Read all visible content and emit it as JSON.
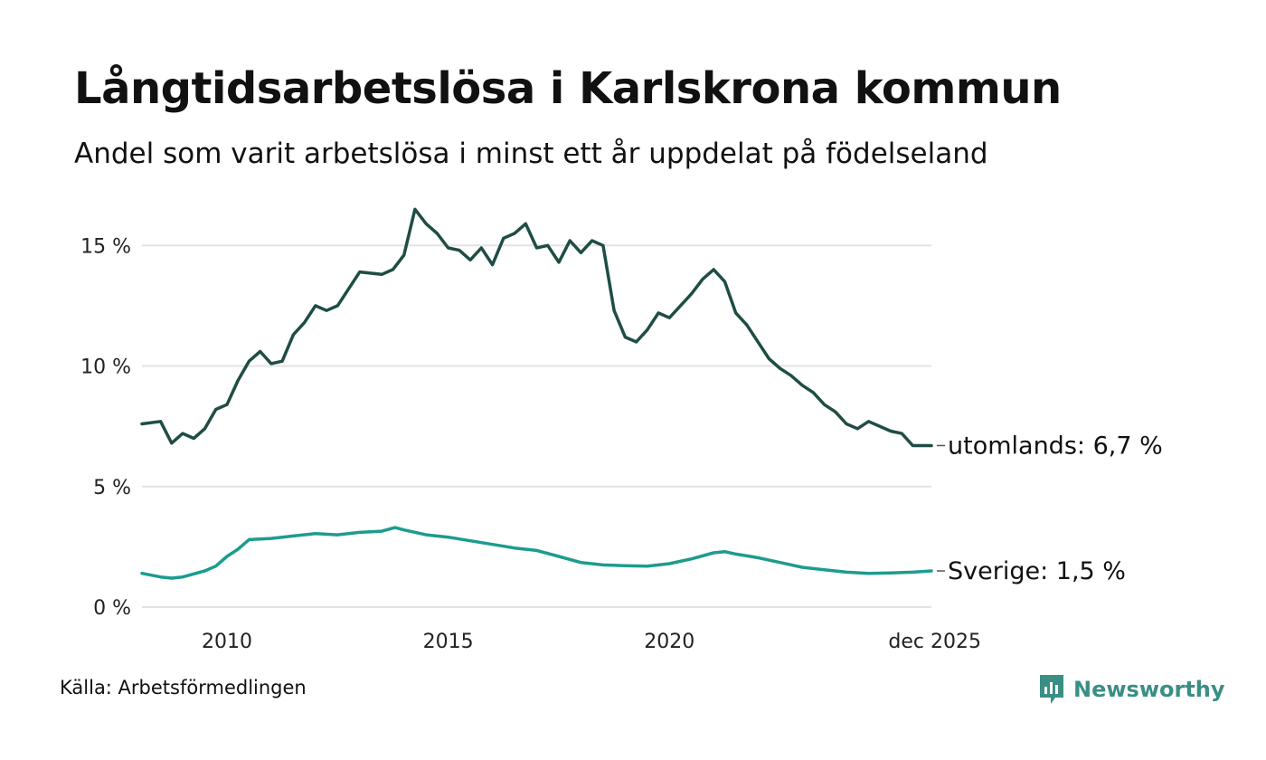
{
  "chart_data": {
    "type": "line",
    "title": "Långtidsarbetslösa i Karlskrona kommun",
    "subtitle": "Andel som varit arbetslösa i minst ett år uppdelat på födelseland",
    "xlabel": "",
    "ylabel": "",
    "ylim": [
      0,
      17
    ],
    "xlim": [
      2008.08,
      2025.92
    ],
    "yticks": [
      0,
      5,
      10,
      15
    ],
    "ytick_labels": [
      "0 %",
      "5 %",
      "10 %",
      "15 %"
    ],
    "xticks": [
      2010,
      2015,
      2020,
      2025.92
    ],
    "xtick_labels": [
      "2010",
      "2015",
      "2020",
      "dec 2025"
    ],
    "grid": true,
    "legend": "direct labels at right end of lines",
    "series": [
      {
        "name": "utomlands",
        "end_label": "utomlands: 6,7 %",
        "color": "#1f4d45",
        "x": [
          2008.08,
          2008.5,
          2008.75,
          2009.0,
          2009.25,
          2009.5,
          2009.75,
          2010.0,
          2010.25,
          2010.5,
          2010.75,
          2011.0,
          2011.25,
          2011.5,
          2011.75,
          2012.0,
          2012.25,
          2012.5,
          2012.75,
          2013.0,
          2013.5,
          2013.75,
          2014.0,
          2014.25,
          2014.5,
          2014.75,
          2015.0,
          2015.25,
          2015.5,
          2015.75,
          2016.0,
          2016.25,
          2016.5,
          2016.75,
          2017.0,
          2017.25,
          2017.5,
          2017.75,
          2018.0,
          2018.25,
          2018.5,
          2018.75,
          2019.0,
          2019.25,
          2019.5,
          2019.75,
          2020.0,
          2020.25,
          2020.5,
          2020.75,
          2021.0,
          2021.25,
          2021.5,
          2021.75,
          2022.0,
          2022.25,
          2022.5,
          2022.75,
          2023.0,
          2023.25,
          2023.5,
          2023.75,
          2024.0,
          2024.25,
          2024.5,
          2024.75,
          2025.0,
          2025.25,
          2025.5,
          2025.75,
          2025.92
        ],
        "values": [
          7.6,
          7.7,
          6.8,
          7.2,
          7.0,
          7.4,
          8.2,
          8.4,
          9.4,
          10.2,
          10.6,
          10.1,
          10.2,
          11.3,
          11.8,
          12.5,
          12.3,
          12.5,
          13.2,
          13.9,
          13.8,
          14.0,
          14.6,
          16.5,
          15.9,
          15.5,
          14.9,
          14.8,
          14.4,
          14.9,
          14.2,
          15.3,
          15.5,
          15.9,
          14.9,
          15.0,
          14.3,
          15.2,
          14.7,
          15.2,
          15.0,
          12.3,
          11.2,
          11.0,
          11.5,
          12.2,
          12.0,
          12.5,
          13.0,
          13.6,
          14.0,
          13.5,
          12.2,
          11.7,
          11.0,
          10.3,
          9.9,
          9.6,
          9.2,
          8.9,
          8.4,
          8.1,
          7.6,
          7.4,
          7.7,
          7.5,
          7.3,
          7.2,
          6.7,
          6.7,
          6.7
        ]
      },
      {
        "name": "Sverige",
        "end_label": "Sverige: 1,5 %",
        "color": "#1c9c8e",
        "x": [
          2008.08,
          2008.5,
          2008.75,
          2009.0,
          2009.5,
          2009.75,
          2010.0,
          2010.25,
          2010.5,
          2011.0,
          2011.5,
          2012.0,
          2012.5,
          2013.0,
          2013.5,
          2013.8,
          2014.0,
          2014.5,
          2015.0,
          2015.5,
          2016.0,
          2016.5,
          2017.0,
          2017.5,
          2018.0,
          2018.5,
          2019.0,
          2019.5,
          2020.0,
          2020.5,
          2021.0,
          2021.25,
          2021.5,
          2022.0,
          2022.5,
          2023.0,
          2023.5,
          2024.0,
          2024.5,
          2025.0,
          2025.5,
          2025.92
        ],
        "values": [
          1.4,
          1.25,
          1.2,
          1.25,
          1.5,
          1.7,
          2.1,
          2.4,
          2.8,
          2.85,
          2.95,
          3.05,
          3.0,
          3.1,
          3.15,
          3.3,
          3.2,
          3.0,
          2.9,
          2.75,
          2.6,
          2.45,
          2.35,
          2.1,
          1.85,
          1.75,
          1.72,
          1.7,
          1.8,
          2.0,
          2.25,
          2.3,
          2.2,
          2.05,
          1.85,
          1.65,
          1.55,
          1.45,
          1.4,
          1.42,
          1.45,
          1.5
        ]
      }
    ]
  },
  "footer": {
    "source": "Källa: Arbetsförmedlingen",
    "brand": "Newsworthy"
  },
  "colors": {
    "grid": "#e3e3e3",
    "brand": "#3a8f85"
  }
}
